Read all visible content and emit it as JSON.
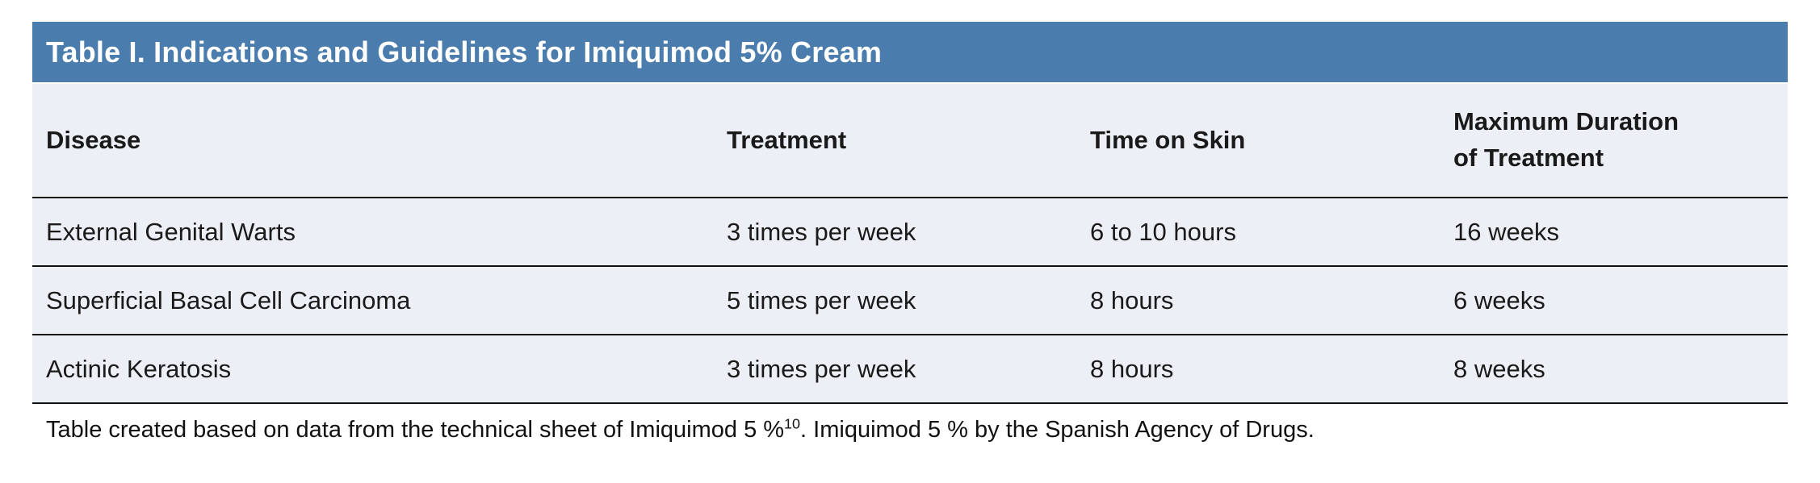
{
  "colors": {
    "title_bar": "#4A7DAD",
    "row_background": "#ECEFF6",
    "separator_line": "#101010",
    "title_text": "#FFFFFF",
    "body_text": "#1A1A1A"
  },
  "table": {
    "title": "Table I. Indications and Guidelines for Imiquimod 5% Cream",
    "columns": [
      "Disease",
      "Treatment",
      "Time on Skin",
      "Maximum Duration\nof Treatment"
    ],
    "rows": [
      {
        "disease": "External Genital Warts",
        "treatment": "3 times per week",
        "time_on_skin": "6 to 10 hours",
        "max_duration": "16 weeks"
      },
      {
        "disease": "Superficial Basal Cell Carcinoma",
        "treatment": "5 times per week",
        "time_on_skin": "8 hours",
        "max_duration": "6 weeks"
      },
      {
        "disease": "Actinic Keratosis",
        "treatment": "3 times per week",
        "time_on_skin": "8 hours",
        "max_duration": "8 weeks"
      }
    ]
  },
  "footnote": {
    "part1": "Table created based on data from the technical sheet of Imiquimod 5 %",
    "reference_superscript": "10",
    "part2": ". Imiquimod 5 % by the Spanish Agency of Drugs."
  }
}
